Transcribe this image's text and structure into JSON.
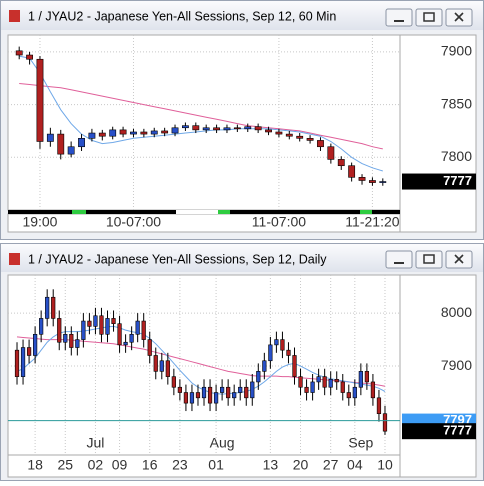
{
  "chart_data": [
    {
      "type": "candlestick",
      "title": "1 / JYAU2 - Japanese Yen-All Sessions, Sep 12, 60 Min",
      "categories": [
        null,
        null,
        "19:00",
        null,
        null,
        null,
        null,
        null,
        null,
        null,
        null,
        "10-07:00",
        null,
        null,
        null,
        null,
        null,
        null,
        null,
        null,
        null,
        null,
        null,
        null,
        null,
        "11-07:00",
        null,
        null,
        null,
        null,
        null,
        null,
        null,
        null,
        "11-21:20",
        null
      ],
      "open": [
        7901,
        7897,
        7893,
        7815,
        7822,
        7803,
        7810,
        7818,
        7823,
        7820,
        7826,
        7822,
        7824,
        7822,
        7825,
        7823,
        7828,
        7830,
        7826,
        7828,
        7826,
        7828,
        7827,
        7829,
        7826,
        7824,
        7822,
        7820,
        7818,
        7816,
        7810,
        7798,
        7792,
        7781,
        7778,
        7776
      ],
      "high": [
        7905,
        7900,
        7896,
        7828,
        7826,
        7815,
        7822,
        7827,
        7826,
        7829,
        7829,
        7827,
        7827,
        7828,
        7828,
        7831,
        7833,
        7833,
        7831,
        7831,
        7831,
        7831,
        7832,
        7832,
        7829,
        7827,
        7825,
        7823,
        7821,
        7819,
        7813,
        7801,
        7795,
        7784,
        7781,
        7780
      ],
      "low": [
        7893,
        7888,
        7808,
        7810,
        7798,
        7800,
        7806,
        7815,
        7816,
        7817,
        7819,
        7819,
        7819,
        7819,
        7820,
        7820,
        7825,
        7823,
        7823,
        7823,
        7823,
        7824,
        7824,
        7823,
        7821,
        7819,
        7817,
        7815,
        7813,
        7806,
        7794,
        7788,
        7777,
        7774,
        7773,
        7773
      ],
      "close": [
        7897,
        7893,
        7815,
        7822,
        7803,
        7810,
        7818,
        7823,
        7820,
        7826,
        7822,
        7824,
        7822,
        7825,
        7823,
        7828,
        7830,
        7826,
        7828,
        7826,
        7828,
        7827,
        7829,
        7826,
        7824,
        7822,
        7820,
        7818,
        7816,
        7810,
        7798,
        7792,
        7781,
        7778,
        7776,
        7777
      ],
      "up_color": "#2850c8",
      "down_color": "#b02020",
      "series": [
        {
          "color": "#e0609a",
          "values": [
            7870,
            7869,
            7868,
            7867,
            7866,
            7864,
            7862,
            7860,
            7858,
            7856,
            7854,
            7852,
            7850,
            7848,
            7846,
            7844,
            7842,
            7840,
            7838,
            7836,
            7834,
            7832,
            7830,
            7829,
            7828,
            7827,
            7826,
            7825,
            7823,
            7821,
            7819,
            7817,
            7815,
            7813,
            7810,
            7808
          ]
        },
        {
          "color": "#6fa8e8",
          "values": [
            7896,
            7894,
            7880,
            7862,
            7845,
            7832,
            7822,
            7816,
            7813,
            7814,
            7816,
            7818,
            7819,
            7820,
            7821,
            7822,
            7823,
            7824,
            7825,
            7826,
            7826,
            7827,
            7827,
            7827,
            7827,
            7826,
            7825,
            7824,
            7822,
            7820,
            7815,
            7808,
            7800,
            7794,
            7790,
            7787
          ]
        }
      ],
      "ylim": [
        7750,
        7916
      ],
      "yticks": [
        7800,
        7850,
        7900
      ],
      "grid": true,
      "last_price": 7777
    },
    {
      "type": "candlestick",
      "title": "1 / JYAU2 - Japanese Yen-All Sessions, Sep 12, Daily",
      "categories": [
        null,
        null,
        null,
        "18",
        null,
        null,
        null,
        null,
        "25",
        null,
        null,
        null,
        null,
        "02",
        null,
        null,
        null,
        "09",
        null,
        null,
        null,
        null,
        "16",
        null,
        null,
        null,
        null,
        "23",
        null,
        null,
        null,
        null,
        null,
        "01",
        null,
        null,
        null,
        null,
        null,
        null,
        null,
        null,
        "13",
        null,
        null,
        null,
        null,
        "20",
        null,
        null,
        null,
        null,
        "27",
        null,
        null,
        null,
        "04",
        null,
        null,
        null,
        null,
        "10"
      ],
      "months": [
        null,
        null,
        null,
        null,
        null,
        null,
        null,
        null,
        null,
        null,
        null,
        null,
        null,
        "Jul",
        null,
        null,
        null,
        null,
        null,
        null,
        null,
        null,
        null,
        null,
        null,
        null,
        null,
        null,
        null,
        null,
        null,
        null,
        null,
        null,
        "Aug",
        null,
        null,
        null,
        null,
        null,
        null,
        null,
        null,
        null,
        null,
        null,
        null,
        null,
        null,
        null,
        null,
        null,
        null,
        null,
        null,
        null,
        null,
        "Sep",
        null,
        null,
        null,
        null
      ],
      "open": [
        7930,
        7880,
        7935,
        7920,
        7960,
        7990,
        8030,
        7990,
        7945,
        7960,
        7935,
        7950,
        7985,
        7975,
        7995,
        7960,
        7990,
        7980,
        7940,
        7945,
        7960,
        7985,
        7950,
        7920,
        7890,
        7910,
        7880,
        7860,
        7850,
        7830,
        7850,
        7840,
        7860,
        7830,
        7850,
        7860,
        7840,
        7850,
        7860,
        7840,
        7870,
        7890,
        7910,
        7940,
        7950,
        7930,
        7920,
        7880,
        7860,
        7850,
        7870,
        7880,
        7860,
        7875,
        7870,
        7850,
        7840,
        7860,
        7890,
        7870,
        7840,
        7810
      ],
      "high": [
        7945,
        7950,
        7950,
        7975,
        8005,
        8045,
        8045,
        8005,
        7975,
        7975,
        7965,
        8000,
        8000,
        8010,
        8010,
        8005,
        8005,
        7995,
        7960,
        7975,
        8000,
        8000,
        7965,
        7935,
        7925,
        7925,
        7895,
        7875,
        7865,
        7865,
        7865,
        7875,
        7875,
        7865,
        7875,
        7875,
        7865,
        7875,
        7875,
        7885,
        7905,
        7925,
        7955,
        7965,
        7965,
        7945,
        7935,
        7895,
        7875,
        7885,
        7895,
        7895,
        7890,
        7890,
        7885,
        7865,
        7875,
        7905,
        7905,
        7885,
        7855,
        7825
      ],
      "low": [
        7865,
        7865,
        7905,
        7905,
        7945,
        7975,
        7975,
        7930,
        7930,
        7920,
        7920,
        7935,
        7960,
        7960,
        7945,
        7945,
        7965,
        7925,
        7925,
        7930,
        7945,
        7935,
        7905,
        7875,
        7875,
        7865,
        7845,
        7835,
        7815,
        7815,
        7825,
        7825,
        7815,
        7815,
        7835,
        7825,
        7825,
        7835,
        7825,
        7825,
        7855,
        7875,
        7895,
        7925,
        7915,
        7905,
        7865,
        7845,
        7835,
        7835,
        7855,
        7845,
        7845,
        7855,
        7835,
        7825,
        7825,
        7845,
        7855,
        7825,
        7795,
        7770
      ],
      "close": [
        7880,
        7935,
        7920,
        7960,
        7990,
        8030,
        7990,
        7945,
        7960,
        7935,
        7950,
        7985,
        7975,
        7995,
        7960,
        7990,
        7980,
        7940,
        7945,
        7960,
        7985,
        7950,
        7920,
        7890,
        7910,
        7880,
        7860,
        7850,
        7830,
        7850,
        7840,
        7860,
        7830,
        7850,
        7860,
        7840,
        7850,
        7860,
        7840,
        7870,
        7890,
        7910,
        7940,
        7950,
        7930,
        7920,
        7880,
        7860,
        7850,
        7870,
        7880,
        7860,
        7875,
        7870,
        7850,
        7840,
        7860,
        7890,
        7870,
        7840,
        7810,
        7777
      ],
      "up_color": "#2850c8",
      "down_color": "#b02020",
      "series": [
        {
          "color": "#e0609a",
          "values": [
            7955,
            7954,
            7953,
            7952,
            7951,
            7950,
            7950,
            7950,
            7950,
            7949,
            7948,
            7947,
            7946,
            7945,
            7944,
            7943,
            7942,
            7940,
            7938,
            7936,
            7934,
            7932,
            7929,
            7926,
            7923,
            7920,
            7917,
            7914,
            7911,
            7908,
            7905,
            7902,
            7899,
            7896,
            7893,
            7890,
            7888,
            7886,
            7884,
            7882,
            7881,
            7881,
            7881,
            7881,
            7880,
            7880,
            7879,
            7878,
            7877,
            7876,
            7875,
            7874,
            7873,
            7872,
            7871,
            7870,
            7869,
            7868,
            7867,
            7866,
            7864,
            7862
          ]
        },
        {
          "color": "#6fa8e8",
          "values": [
            7890,
            7895,
            7905,
            7915,
            7930,
            7945,
            7955,
            7962,
            7965,
            7965,
            7965,
            7966,
            7968,
            7970,
            7972,
            7974,
            7975,
            7972,
            7968,
            7965,
            7963,
            7960,
            7952,
            7942,
            7930,
            7918,
            7905,
            7892,
            7880,
            7868,
            7860,
            7855,
            7850,
            7848,
            7847,
            7848,
            7849,
            7850,
            7852,
            7856,
            7862,
            7870,
            7880,
            7890,
            7898,
            7903,
            7905,
            7900,
            7894,
            7888,
            7883,
            7879,
            7876,
            7874,
            7872,
            7870,
            7868,
            7866,
            7864,
            7862,
            7858,
            7852
          ]
        }
      ],
      "ylim": [
        7732,
        8072
      ],
      "yticks": [
        7900,
        8000
      ],
      "grid": true,
      "marker_price": 7797,
      "marker_color": "#2a9a9a",
      "last_price": 7777
    }
  ]
}
